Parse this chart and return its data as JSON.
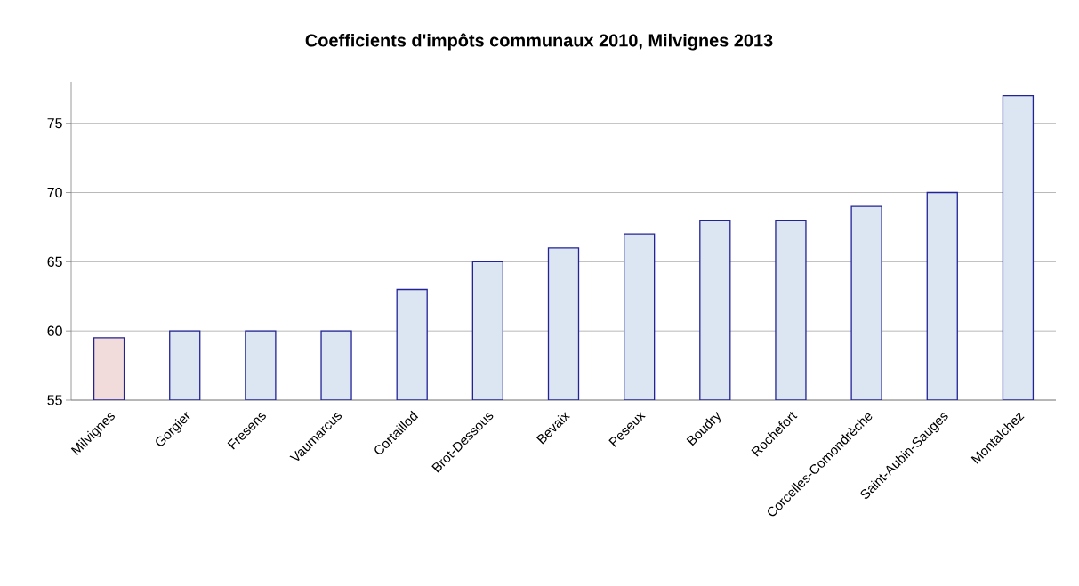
{
  "chart_data": {
    "type": "bar",
    "title": "Coefficients d'impôts communaux 2010,  Milvignes 2013",
    "categories": [
      "Milvignes",
      "Gorgier",
      "Fresens",
      "Vaumarcus",
      "Cortaillod",
      "Brot-Dessous",
      "Bevaix",
      "Peseux",
      "Boudry",
      "Rochefort",
      "Corcelles-Comondrèche",
      "Saint-Aubin-Sauges",
      "Montalchez"
    ],
    "values": [
      59.5,
      60,
      60,
      60,
      63,
      65,
      66,
      67,
      68,
      68,
      69,
      70,
      77
    ],
    "colors": [
      "#f2dcdb",
      "#dce6f2",
      "#dce6f2",
      "#dce6f2",
      "#dce6f2",
      "#dce6f2",
      "#dce6f2",
      "#dce6f2",
      "#dce6f2",
      "#dce6f2",
      "#dce6f2",
      "#dce6f2",
      "#dce6f2"
    ],
    "ylim": [
      55,
      78
    ],
    "yticks": [
      55,
      60,
      65,
      70,
      75
    ],
    "grid": "y"
  }
}
